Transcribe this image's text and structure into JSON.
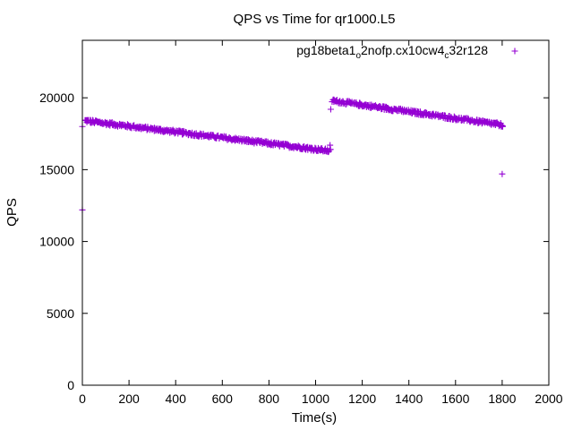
{
  "chart_data": {
    "type": "scatter",
    "title": "QPS vs Time for qr1000.L5",
    "xlabel": "Time(s)",
    "ylabel": "QPS",
    "xlim": [
      0,
      2000
    ],
    "ylim": [
      0,
      24000
    ],
    "x_ticks": [
      "0",
      "200",
      "400",
      "600",
      "800",
      "1000",
      "1200",
      "1400",
      "1600",
      "1800",
      "2000"
    ],
    "y_ticks": [
      "0",
      "5000",
      "10000",
      "15000",
      "20000"
    ],
    "grid": false,
    "legend_position": "top-right",
    "marker": "+",
    "color": "#9400d3",
    "series": [
      {
        "name": "pg18beta1_o2nofp.cx10cw4_c32r128",
        "legend_parts": [
          {
            "text": "pg18beta1",
            "sub": false
          },
          {
            "text": "o",
            "sub": true
          },
          {
            "text": "2nofp.cx10cw4",
            "sub": false
          },
          {
            "text": "c",
            "sub": true
          },
          {
            "text": "32r128",
            "sub": false
          }
        ],
        "segments": [
          {
            "x_start": 10,
            "x_end": 1060,
            "y_start": 18400,
            "y_end": 16300,
            "step": 5,
            "noise": 120
          },
          {
            "x_start": 1070,
            "x_end": 1800,
            "y_start": 19800,
            "y_end": 18100,
            "step": 5,
            "noise": 120
          }
        ],
        "points": [
          {
            "x": 0,
            "y": 12200
          },
          {
            "x": 0,
            "y": 18000
          },
          {
            "x": 1062,
            "y": 16700
          },
          {
            "x": 1065,
            "y": 19200
          },
          {
            "x": 1800,
            "y": 14700
          }
        ]
      }
    ]
  }
}
